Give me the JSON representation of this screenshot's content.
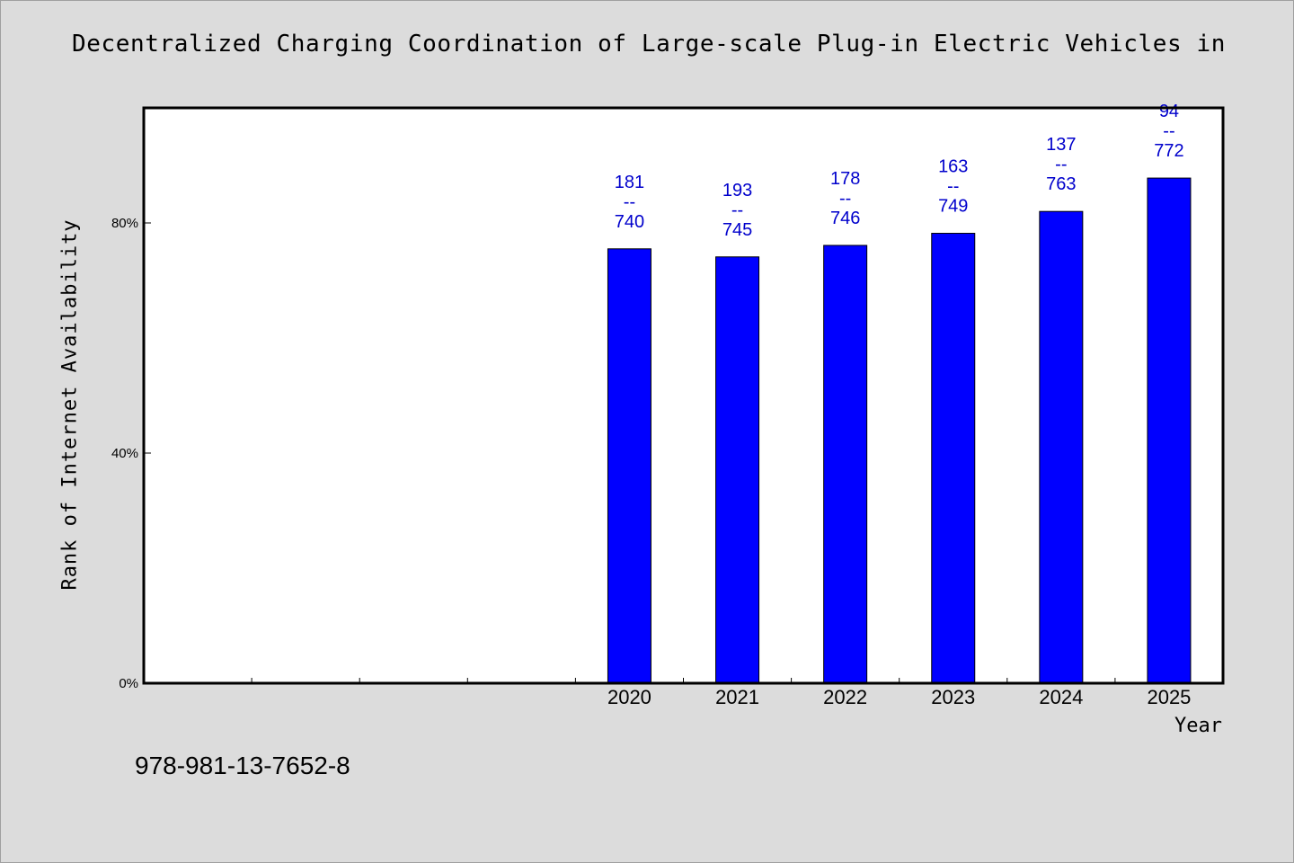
{
  "chart_data": {
    "type": "bar",
    "title": "Decentralized Charging Coordination of Large-scale Plug-in Electric Vehicles in",
    "xlabel": "Year",
    "ylabel": "Rank of Internet Availability",
    "categories": [
      "",
      "",
      "",
      "",
      "2020",
      "2021",
      "2022",
      "2023",
      "2024",
      "2025"
    ],
    "values": [
      null,
      null,
      null,
      null,
      75.5,
      74.1,
      76.1,
      78.2,
      82.0,
      87.8
    ],
    "data_labels": [
      null,
      null,
      null,
      null,
      {
        "top": "181",
        "mid": "--",
        "bottom": "740"
      },
      {
        "top": "193",
        "mid": "--",
        "bottom": "745"
      },
      {
        "top": "178",
        "mid": "--",
        "bottom": "746"
      },
      {
        "top": "163",
        "mid": "--",
        "bottom": "749"
      },
      {
        "top": "137",
        "mid": "--",
        "bottom": "763"
      },
      {
        "top": "94",
        "mid": "--",
        "bottom": "772"
      }
    ],
    "yticks": [
      {
        "value": 0,
        "label": "0%"
      },
      {
        "value": 40,
        "label": "40%"
      },
      {
        "value": 80,
        "label": "80%"
      }
    ],
    "ylim": [
      0,
      100
    ],
    "grid": false,
    "bar_color": "#0000ff",
    "label_color": "#0000cc"
  },
  "footer": {
    "isbn": "978-981-13-7652-8"
  }
}
